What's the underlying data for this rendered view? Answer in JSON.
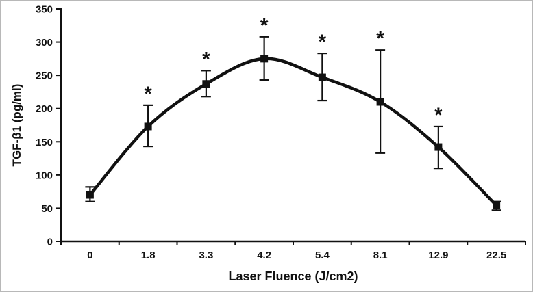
{
  "figure": {
    "background": "#ffffff",
    "border_color": "#b8b8b8"
  },
  "chart_data": {
    "type": "line",
    "title": "",
    "xlabel": "Laser Fluence (J/cm2)",
    "ylabel": "TGF-β1 (pg/ml)",
    "categories": [
      "0",
      "1.8",
      "3.3",
      "4.2",
      "5.4",
      "8.1",
      "12.9",
      "22.5"
    ],
    "series": [
      {
        "name": "TGF-β1",
        "values": [
          70,
          173,
          237,
          275,
          247,
          210,
          142,
          54
        ],
        "error_upper": [
          82,
          205,
          257,
          308,
          283,
          288,
          173,
          60
        ],
        "error_lower": [
          60,
          143,
          218,
          243,
          212,
          133,
          110,
          47
        ],
        "significant": [
          false,
          true,
          true,
          true,
          true,
          true,
          true,
          false
        ]
      }
    ],
    "ylim": [
      0,
      350
    ],
    "yticks": [
      "0",
      "50",
      "100",
      "150",
      "200",
      "250",
      "300",
      "350"
    ],
    "grid": false,
    "legend": "none",
    "marker": "square",
    "line_color": "#111111",
    "annotation_symbol": "*"
  }
}
